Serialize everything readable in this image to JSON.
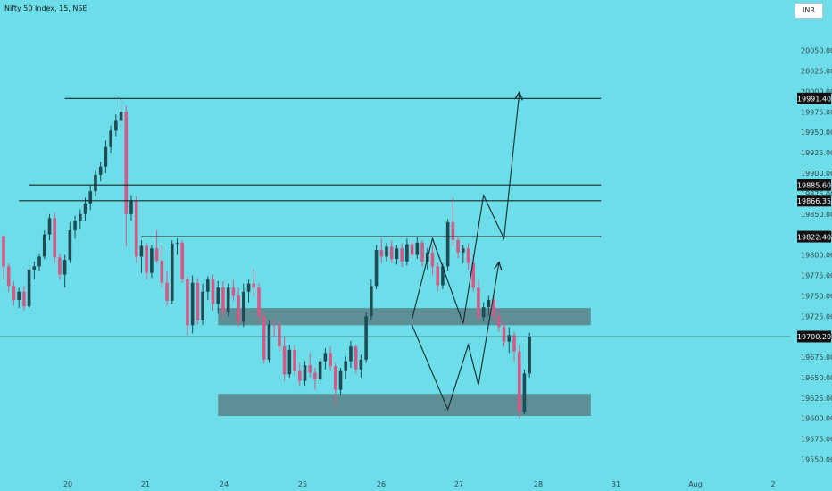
{
  "header": {
    "symbol": "Nifty 50 Index, 15, NSE"
  },
  "toolbar": {
    "currency": "INR"
  },
  "colors": {
    "background": "#6ddde9",
    "bull": "#1f4c53",
    "bear": "#d45a85",
    "zone": "#5c8f96",
    "line": "#15282c"
  },
  "chart_data": {
    "type": "candlestick",
    "y_ticks": [
      "20050.00",
      "20025.00",
      "20000.00",
      "19975.00",
      "19950.00",
      "19925.00",
      "19900.00",
      "19875.00",
      "19850.00",
      "19825.00",
      "19800.00",
      "19775.00",
      "19750.00",
      "19725.00",
      "19700.00",
      "19675.00",
      "19650.00",
      "19625.00",
      "19600.00",
      "19575.00",
      "19550.00"
    ],
    "x_ticks": [
      "20",
      "21",
      "24",
      "25",
      "26",
      "27",
      "28",
      "31",
      "Aug",
      "2"
    ],
    "ylim": [
      19532,
      20090
    ],
    "levels": [
      {
        "value": 19991.4,
        "label": "19991.40",
        "from_bar": 12,
        "to_bar": 117
      },
      {
        "value": 19885.6,
        "label": "19885.60",
        "from_bar": 5,
        "to_bar": 117
      },
      {
        "value": 19866.35,
        "label": "19866.35",
        "from_bar": 3,
        "to_bar": 117
      },
      {
        "value": 19822.4,
        "label": "19822.40",
        "from_bar": 27,
        "to_bar": 117
      }
    ],
    "price_label": {
      "value": 19700.2,
      "label": "19700.20"
    },
    "zones": [
      {
        "from_bar": 42,
        "to_bar": 115,
        "low": 19714,
        "high": 19735
      },
      {
        "from_bar": 42,
        "to_bar": 115,
        "low": 19603,
        "high": 19630
      }
    ],
    "projections": [
      [
        [
          80,
          19722
        ],
        [
          84,
          19820
        ],
        [
          90,
          19716
        ],
        [
          94,
          19873
        ],
        [
          98,
          19820
        ],
        [
          101,
          19998
        ]
      ],
      [
        [
          80,
          19714
        ],
        [
          87,
          19611
        ],
        [
          91,
          19690
        ],
        [
          93,
          19641
        ],
        [
          97,
          19790
        ]
      ]
    ],
    "candles": [
      [
        19823,
        19824,
        19770,
        19786
      ],
      [
        19786,
        19790,
        19755,
        19762
      ],
      [
        19762,
        19768,
        19738,
        19745
      ],
      [
        19745,
        19760,
        19735,
        19755
      ],
      [
        19755,
        19762,
        19732,
        19737
      ],
      [
        19737,
        19788,
        19735,
        19782
      ],
      [
        19782,
        19792,
        19770,
        19786
      ],
      [
        19786,
        19802,
        19780,
        19798
      ],
      [
        19798,
        19830,
        19795,
        19825
      ],
      [
        19825,
        19850,
        19818,
        19845
      ],
      [
        19845,
        19852,
        19790,
        19797
      ],
      [
        19797,
        19802,
        19770,
        19776
      ],
      [
        19776,
        19800,
        19760,
        19794
      ],
      [
        19794,
        19840,
        19790,
        19830
      ],
      [
        19830,
        19848,
        19820,
        19842
      ],
      [
        19842,
        19856,
        19832,
        19850
      ],
      [
        19850,
        19870,
        19842,
        19863
      ],
      [
        19863,
        19886,
        19855,
        19878
      ],
      [
        19878,
        19904,
        19872,
        19898
      ],
      [
        19898,
        19914,
        19890,
        19908
      ],
      [
        19908,
        19940,
        19900,
        19932
      ],
      [
        19932,
        19958,
        19925,
        19952
      ],
      [
        19952,
        19972,
        19945,
        19965
      ],
      [
        19965,
        19992,
        19957,
        19975
      ],
      [
        19975,
        19982,
        19810,
        19850
      ],
      [
        19850,
        19873,
        19842,
        19866
      ],
      [
        19866,
        19872,
        19790,
        19798
      ],
      [
        19798,
        19818,
        19778,
        19811
      ],
      [
        19811,
        19815,
        19770,
        19778
      ],
      [
        19778,
        19812,
        19772,
        19808
      ],
      [
        19808,
        19830,
        19790,
        19793
      ],
      [
        19793,
        19812,
        19760,
        19766
      ],
      [
        19766,
        19780,
        19738,
        19744
      ],
      [
        19744,
        19818,
        19740,
        19814
      ],
      [
        19814,
        19820,
        19800,
        19815
      ],
      [
        19815,
        19818,
        19766,
        19770
      ],
      [
        19770,
        19774,
        19702,
        19714
      ],
      [
        19714,
        19775,
        19704,
        19766
      ],
      [
        19766,
        19772,
        19715,
        19720
      ],
      [
        19720,
        19765,
        19714,
        19755
      ],
      [
        19755,
        19774,
        19745,
        19770
      ],
      [
        19770,
        19776,
        19732,
        19740
      ],
      [
        19740,
        19768,
        19728,
        19760
      ],
      [
        19760,
        19768,
        19722,
        19730
      ],
      [
        19730,
        19765,
        19725,
        19760
      ],
      [
        19760,
        19770,
        19744,
        19750
      ],
      [
        19750,
        19760,
        19712,
        19718
      ],
      [
        19718,
        19765,
        19712,
        19755
      ],
      [
        19755,
        19770,
        19742,
        19765
      ],
      [
        19765,
        19782,
        19750,
        19760
      ],
      [
        19760,
        19765,
        19718,
        19725
      ],
      [
        19725,
        19732,
        19667,
        19672
      ],
      [
        19672,
        19720,
        19668,
        19715
      ],
      [
        19715,
        19722,
        19700,
        19714
      ],
      [
        19714,
        19718,
        19682,
        19688
      ],
      [
        19688,
        19700,
        19646,
        19654
      ],
      [
        19654,
        19690,
        19650,
        19684
      ],
      [
        19684,
        19690,
        19652,
        19658
      ],
      [
        19658,
        19668,
        19640,
        19646
      ],
      [
        19646,
        19670,
        19640,
        19665
      ],
      [
        19665,
        19680,
        19650,
        19656
      ],
      [
        19656,
        19662,
        19635,
        19648
      ],
      [
        19648,
        19674,
        19642,
        19670
      ],
      [
        19670,
        19686,
        19660,
        19680
      ],
      [
        19680,
        19688,
        19658,
        19664
      ],
      [
        19664,
        19668,
        19615,
        19635
      ],
      [
        19635,
        19662,
        19628,
        19658
      ],
      [
        19658,
        19676,
        19648,
        19670
      ],
      [
        19670,
        19695,
        19662,
        19688
      ],
      [
        19688,
        19690,
        19655,
        19660
      ],
      [
        19660,
        19678,
        19650,
        19672
      ],
      [
        19672,
        19730,
        19668,
        19725
      ],
      [
        19725,
        19770,
        19720,
        19762
      ],
      [
        19762,
        19812,
        19758,
        19806
      ],
      [
        19806,
        19820,
        19790,
        19798
      ],
      [
        19798,
        19815,
        19792,
        19810
      ],
      [
        19810,
        19818,
        19790,
        19795
      ],
      [
        19795,
        19812,
        19788,
        19808
      ],
      [
        19808,
        19814,
        19785,
        19792
      ],
      [
        19792,
        19820,
        19787,
        19813
      ],
      [
        19813,
        19818,
        19796,
        19800
      ],
      [
        19800,
        19822,
        19795,
        19815
      ],
      [
        19815,
        19818,
        19786,
        19792
      ],
      [
        19792,
        19808,
        19782,
        19803
      ],
      [
        19803,
        19812,
        19775,
        19786
      ],
      [
        19786,
        19790,
        19755,
        19763
      ],
      [
        19763,
        19790,
        19758,
        19786
      ],
      [
        19786,
        19844,
        19780,
        19840
      ],
      [
        19840,
        19870,
        19810,
        19818
      ],
      [
        19818,
        19822,
        19796,
        19803
      ],
      [
        19803,
        19812,
        19790,
        19808
      ],
      [
        19808,
        19814,
        19782,
        19790
      ],
      [
        19790,
        19800,
        19755,
        19760
      ],
      [
        19760,
        19770,
        19718,
        19724
      ],
      [
        19724,
        19742,
        19718,
        19736
      ],
      [
        19736,
        19750,
        19726,
        19745
      ],
      [
        19745,
        19750,
        19720,
        19725
      ],
      [
        19725,
        19735,
        19706,
        19712
      ],
      [
        19712,
        19718,
        19688,
        19694
      ],
      [
        19694,
        19712,
        19680,
        19702
      ],
      [
        19702,
        19706,
        19670,
        19682
      ],
      [
        19682,
        19690,
        19600,
        19608
      ],
      [
        19608,
        19660,
        19605,
        19655
      ],
      [
        19655,
        19705,
        19650,
        19700
      ]
    ]
  }
}
